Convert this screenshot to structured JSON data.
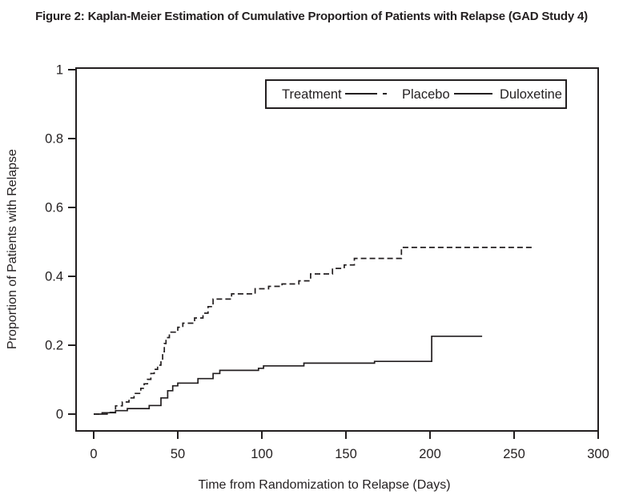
{
  "chart_data": {
    "type": "line",
    "subtype": "kaplan-meier-step",
    "title": "Figure 2: Kaplan-Meier Estimation of Cumulative Proportion of Patients with Relapse (GAD Study 4)",
    "xlabel": "Time from Randomization to Relapse (Days)",
    "ylabel": "Proportion of Patients with Relapse",
    "xlim": [
      0,
      300
    ],
    "ylim": [
      0,
      1
    ],
    "x_ticks": [
      0,
      50,
      100,
      150,
      200,
      250,
      300
    ],
    "y_ticks": [
      0,
      0.2,
      0.4,
      0.6,
      0.8,
      1
    ],
    "y_tick_labels": [
      "0",
      "0.2",
      "0.4",
      "0.6",
      "0.8",
      "1"
    ],
    "grid": false,
    "legend": {
      "title": "Treatment",
      "position": "top-center-inside",
      "entries": [
        {
          "label": "Placebo",
          "line_style": "dashed"
        },
        {
          "label": "Duloxetine",
          "line_style": "solid"
        }
      ]
    },
    "series": [
      {
        "name": "Placebo",
        "line_style": "dashed",
        "color": "#231f20",
        "points_day_proportion": [
          [
            0,
            0
          ],
          [
            8,
            0.005
          ],
          [
            13,
            0.024
          ],
          [
            17,
            0.035
          ],
          [
            21,
            0.047
          ],
          [
            24,
            0.06
          ],
          [
            28,
            0.075
          ],
          [
            30,
            0.088
          ],
          [
            32,
            0.101
          ],
          [
            34,
            0.118
          ],
          [
            36,
            0.13
          ],
          [
            38,
            0.142
          ],
          [
            40,
            0.158
          ],
          [
            41,
            0.181
          ],
          [
            42,
            0.205
          ],
          [
            43,
            0.222
          ],
          [
            45,
            0.238
          ],
          [
            50,
            0.252
          ],
          [
            53,
            0.264
          ],
          [
            60,
            0.279
          ],
          [
            65,
            0.293
          ],
          [
            68,
            0.312
          ],
          [
            71,
            0.334
          ],
          [
            82,
            0.349
          ],
          [
            96,
            0.364
          ],
          [
            104,
            0.371
          ],
          [
            112,
            0.378
          ],
          [
            122,
            0.387
          ],
          [
            129,
            0.407
          ],
          [
            142,
            0.423
          ],
          [
            149,
            0.433
          ],
          [
            155,
            0.452
          ],
          [
            183,
            0.484
          ],
          [
            261,
            0.484
          ]
        ]
      },
      {
        "name": "Duloxetine",
        "line_style": "solid",
        "color": "#231f20",
        "points_day_proportion": [
          [
            0,
            0
          ],
          [
            5,
            0.004
          ],
          [
            13,
            0.01
          ],
          [
            20,
            0.016
          ],
          [
            33,
            0.025
          ],
          [
            40,
            0.047
          ],
          [
            44,
            0.068
          ],
          [
            47,
            0.082
          ],
          [
            50,
            0.09
          ],
          [
            62,
            0.103
          ],
          [
            71,
            0.118
          ],
          [
            75,
            0.127
          ],
          [
            98,
            0.133
          ],
          [
            101,
            0.14
          ],
          [
            125,
            0.148
          ],
          [
            167,
            0.153
          ],
          [
            201,
            0.226
          ],
          [
            231,
            0.226
          ]
        ]
      }
    ]
  },
  "colors": {
    "curve": "#231f20",
    "axis": "#231f20",
    "background": "#ffffff"
  }
}
